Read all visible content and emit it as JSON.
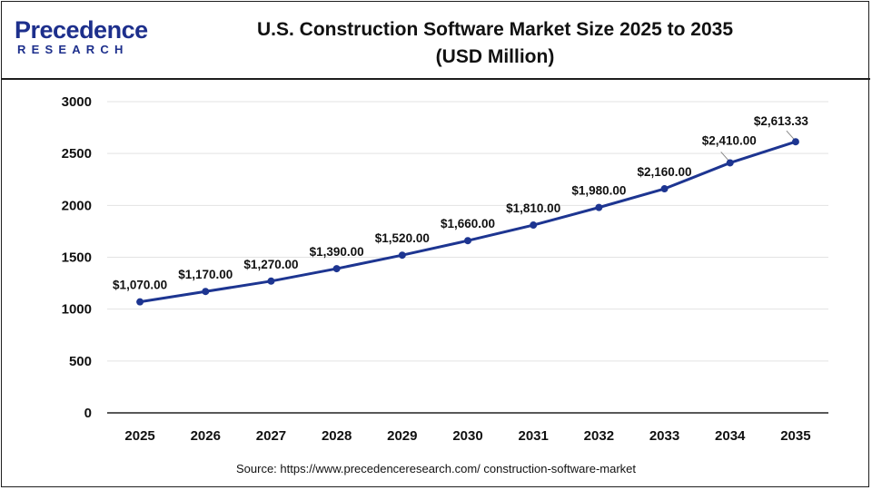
{
  "header": {
    "logo_top": "Precedence",
    "logo_bottom": "RESEARCH",
    "title_line1": "U.S. Construction Software Market Size 2025 to 2035",
    "title_line2": "(USD Million)"
  },
  "source": "Source: https://www.precedenceresearch.com/ construction-software-market",
  "colors": {
    "line": "#1d3591",
    "grid": "#e3e3e3",
    "axis": "#000000",
    "brand": "#1d2f8c"
  },
  "chart_data": {
    "type": "line",
    "title": "U.S. Construction Software Market Size 2025 to 2035 (USD Million)",
    "xlabel": "",
    "ylabel": "",
    "categories": [
      "2025",
      "2026",
      "2027",
      "2028",
      "2029",
      "2030",
      "2031",
      "2032",
      "2033",
      "2034",
      "2035"
    ],
    "values": [
      1070,
      1170,
      1270,
      1390,
      1520,
      1660,
      1810,
      1980,
      2160,
      2410,
      2613.33
    ],
    "data_labels": [
      "$1,070.00",
      "$1,170.00",
      "$1,270.00",
      "$1,390.00",
      "$1,520.00",
      "$1,660.00",
      "$1,810.00",
      "$1,980.00",
      "$2,160.00",
      "$2,410.00",
      "$2,613.33"
    ],
    "ylim": [
      0,
      3000
    ],
    "yticks": [
      0,
      500,
      1000,
      1500,
      2000,
      2500,
      3000
    ],
    "grid": true,
    "legend": "none"
  }
}
